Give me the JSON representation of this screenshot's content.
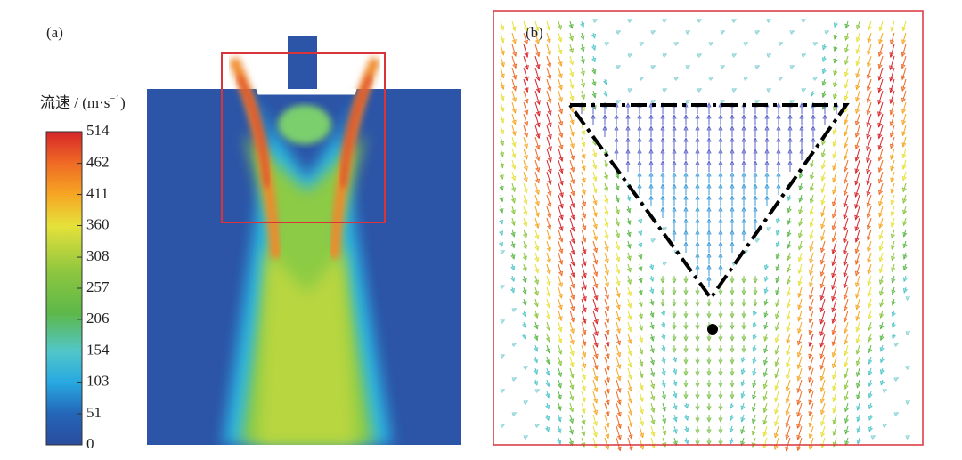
{
  "panel_a": {
    "label": "(a)"
  },
  "panel_b": {
    "label": "(b)"
  },
  "colorbar": {
    "label": "流速 / (m·s",
    "label_sup": "−1",
    "label_end": ")",
    "lim": [
      0,
      514
    ],
    "ticks": [
      0,
      51,
      103,
      154,
      206,
      257,
      308,
      360,
      411,
      462,
      514
    ]
  }
}
